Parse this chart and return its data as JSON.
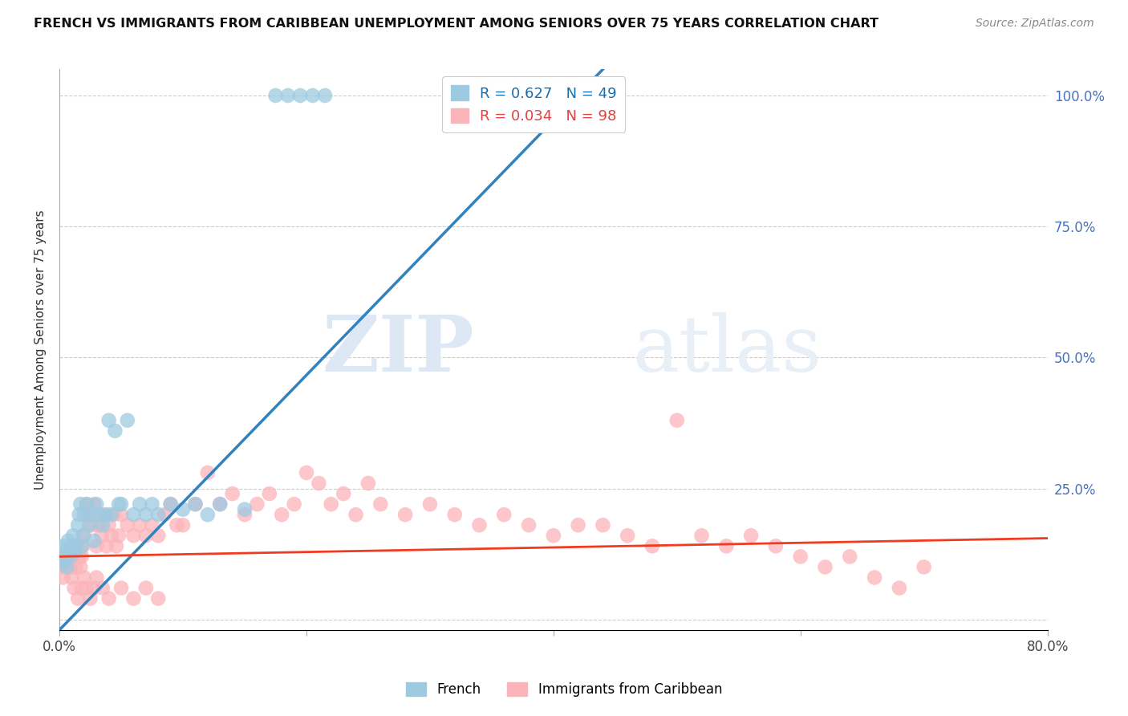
{
  "title": "FRENCH VS IMMIGRANTS FROM CARIBBEAN UNEMPLOYMENT AMONG SENIORS OVER 75 YEARS CORRELATION CHART",
  "source": "Source: ZipAtlas.com",
  "ylabel": "Unemployment Among Seniors over 75 years",
  "xlim": [
    0.0,
    0.8
  ],
  "ylim": [
    -0.02,
    1.05
  ],
  "plot_ylim": [
    0.0,
    1.0
  ],
  "french_R": 0.627,
  "french_N": 49,
  "carib_R": 0.034,
  "carib_N": 98,
  "french_color": "#9ecae1",
  "carib_color": "#fbb4b9",
  "french_line_color": "#3182bd",
  "carib_line_color": "#f03b20",
  "watermark_zip": "ZIP",
  "watermark_atlas": "atlas",
  "legend_label_french": "French",
  "legend_label_carib": "Immigrants from Caribbean",
  "french_line_x0": 0.0,
  "french_line_y0": -0.02,
  "french_line_x1": 0.44,
  "french_line_y1": 1.05,
  "carib_line_x0": 0.0,
  "carib_line_y0": 0.12,
  "carib_line_x1": 0.8,
  "carib_line_y1": 0.155,
  "marker_size": 180,
  "french_x": [
    0.001,
    0.002,
    0.003,
    0.004,
    0.005,
    0.006,
    0.007,
    0.008,
    0.009,
    0.01,
    0.011,
    0.012,
    0.013,
    0.015,
    0.016,
    0.017,
    0.018,
    0.019,
    0.02,
    0.022,
    0.024,
    0.026,
    0.028,
    0.03,
    0.032,
    0.035,
    0.038,
    0.04,
    0.042,
    0.045,
    0.048,
    0.05,
    0.055,
    0.06,
    0.065,
    0.07,
    0.075,
    0.08,
    0.09,
    0.1,
    0.11,
    0.12,
    0.13,
    0.15,
    0.175,
    0.185,
    0.195,
    0.205,
    0.215
  ],
  "french_y": [
    0.12,
    0.13,
    0.11,
    0.14,
    0.12,
    0.1,
    0.15,
    0.13,
    0.12,
    0.14,
    0.16,
    0.14,
    0.13,
    0.18,
    0.2,
    0.22,
    0.14,
    0.16,
    0.2,
    0.22,
    0.18,
    0.2,
    0.15,
    0.22,
    0.2,
    0.18,
    0.2,
    0.38,
    0.2,
    0.36,
    0.22,
    0.22,
    0.38,
    0.2,
    0.22,
    0.2,
    0.22,
    0.2,
    0.22,
    0.21,
    0.22,
    0.2,
    0.22,
    0.21,
    1.0,
    1.0,
    1.0,
    1.0,
    1.0
  ],
  "carib_x": [
    0.001,
    0.002,
    0.003,
    0.004,
    0.005,
    0.006,
    0.007,
    0.008,
    0.009,
    0.01,
    0.011,
    0.012,
    0.013,
    0.014,
    0.015,
    0.016,
    0.017,
    0.018,
    0.019,
    0.02,
    0.022,
    0.024,
    0.026,
    0.028,
    0.03,
    0.032,
    0.034,
    0.036,
    0.038,
    0.04,
    0.042,
    0.044,
    0.046,
    0.048,
    0.05,
    0.055,
    0.06,
    0.065,
    0.07,
    0.075,
    0.08,
    0.085,
    0.09,
    0.095,
    0.1,
    0.11,
    0.12,
    0.13,
    0.14,
    0.15,
    0.16,
    0.17,
    0.18,
    0.19,
    0.2,
    0.21,
    0.22,
    0.23,
    0.24,
    0.25,
    0.26,
    0.28,
    0.3,
    0.32,
    0.34,
    0.36,
    0.38,
    0.4,
    0.42,
    0.44,
    0.46,
    0.48,
    0.5,
    0.52,
    0.54,
    0.56,
    0.58,
    0.6,
    0.62,
    0.64,
    0.66,
    0.68,
    0.7,
    0.01,
    0.012,
    0.015,
    0.018,
    0.02,
    0.022,
    0.025,
    0.028,
    0.03,
    0.035,
    0.04,
    0.05,
    0.06,
    0.07,
    0.08
  ],
  "carib_y": [
    0.1,
    0.12,
    0.08,
    0.12,
    0.1,
    0.12,
    0.1,
    0.12,
    0.1,
    0.12,
    0.12,
    0.14,
    0.1,
    0.12,
    0.14,
    0.12,
    0.1,
    0.12,
    0.14,
    0.16,
    0.22,
    0.2,
    0.18,
    0.22,
    0.14,
    0.18,
    0.16,
    0.2,
    0.14,
    0.18,
    0.16,
    0.2,
    0.14,
    0.16,
    0.2,
    0.18,
    0.16,
    0.18,
    0.16,
    0.18,
    0.16,
    0.2,
    0.22,
    0.18,
    0.18,
    0.22,
    0.28,
    0.22,
    0.24,
    0.2,
    0.22,
    0.24,
    0.2,
    0.22,
    0.28,
    0.26,
    0.22,
    0.24,
    0.2,
    0.26,
    0.22,
    0.2,
    0.22,
    0.2,
    0.18,
    0.2,
    0.18,
    0.16,
    0.18,
    0.18,
    0.16,
    0.14,
    0.38,
    0.16,
    0.14,
    0.16,
    0.14,
    0.12,
    0.1,
    0.12,
    0.08,
    0.06,
    0.1,
    0.08,
    0.06,
    0.04,
    0.06,
    0.08,
    0.06,
    0.04,
    0.06,
    0.08,
    0.06,
    0.04,
    0.06,
    0.04,
    0.06,
    0.04
  ]
}
